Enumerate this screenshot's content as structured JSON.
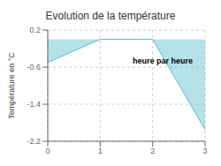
{
  "chart_data": {
    "type": "area",
    "title": "Evolution de la température",
    "ylabel": "Température en °C",
    "annotation": "heure par heure",
    "x": [
      0,
      1,
      2,
      3
    ],
    "values": [
      -0.5,
      0.0,
      0.0,
      -1.95
    ],
    "baseline": 0.0,
    "color": "#5bbccc",
    "xlim": [
      0,
      3
    ],
    "xticks": [
      0,
      1,
      2,
      3
    ],
    "ylim": [
      -2.2,
      0.2
    ],
    "yticks": [
      0.2,
      -0.6,
      -1.4,
      -2.2
    ],
    "grid": true
  }
}
